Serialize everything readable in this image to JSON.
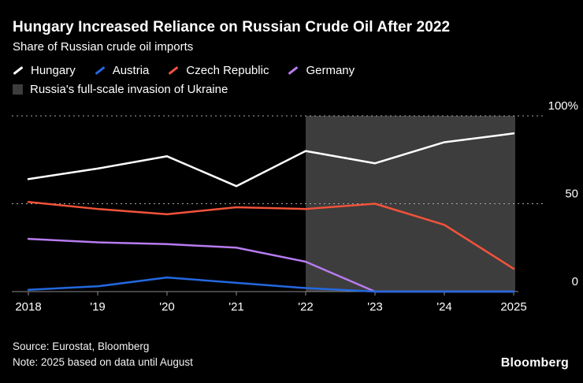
{
  "header": {
    "title": "Hungary Increased Reliance on Russian Crude Oil After 2022",
    "subtitle": "Share of Russian crude oil imports"
  },
  "chart_data": {
    "type": "line",
    "title": "Hungary Increased Reliance on Russian Crude Oil After 2022",
    "subtitle": "Share of Russian crude oil imports",
    "x": [
      "2018",
      "'19",
      "'20",
      "'21",
      "'22",
      "'23",
      "'24",
      "2025"
    ],
    "series": [
      {
        "name": "Hungary",
        "color": "#ffffff",
        "values": [
          64,
          70,
          77,
          60,
          80,
          73,
          85,
          90
        ]
      },
      {
        "name": "Austria",
        "color": "#2468e0",
        "values": [
          1,
          3,
          8,
          5,
          2,
          0,
          0,
          0
        ]
      },
      {
        "name": "Czech Republic",
        "color": "#f3533a",
        "values": [
          51,
          47,
          44,
          48,
          47,
          50,
          38,
          13
        ]
      },
      {
        "name": "Germany",
        "color": "#b77cf0",
        "values": [
          30,
          28,
          27,
          25,
          17,
          0,
          0,
          0
        ]
      }
    ],
    "ylim": [
      0,
      100
    ],
    "yticks": [
      {
        "value": 0,
        "label": "0"
      },
      {
        "value": 50,
        "label": "50"
      },
      {
        "value": 100,
        "label": "100%"
      }
    ],
    "grid": "dotted horizontal gridlines at 50 and 100, solid baseline at 0",
    "legend_position": "top-left",
    "shaded_region": {
      "from_x": "'22",
      "to_x": "2025",
      "label": "Russia's full-scale invasion of Ukraine",
      "color": "#3d3d3d"
    }
  },
  "footer": {
    "source": "Source: Eurostat, Bloomberg",
    "note": "Note: 2025 based on data until August",
    "logo": "Bloomberg"
  }
}
